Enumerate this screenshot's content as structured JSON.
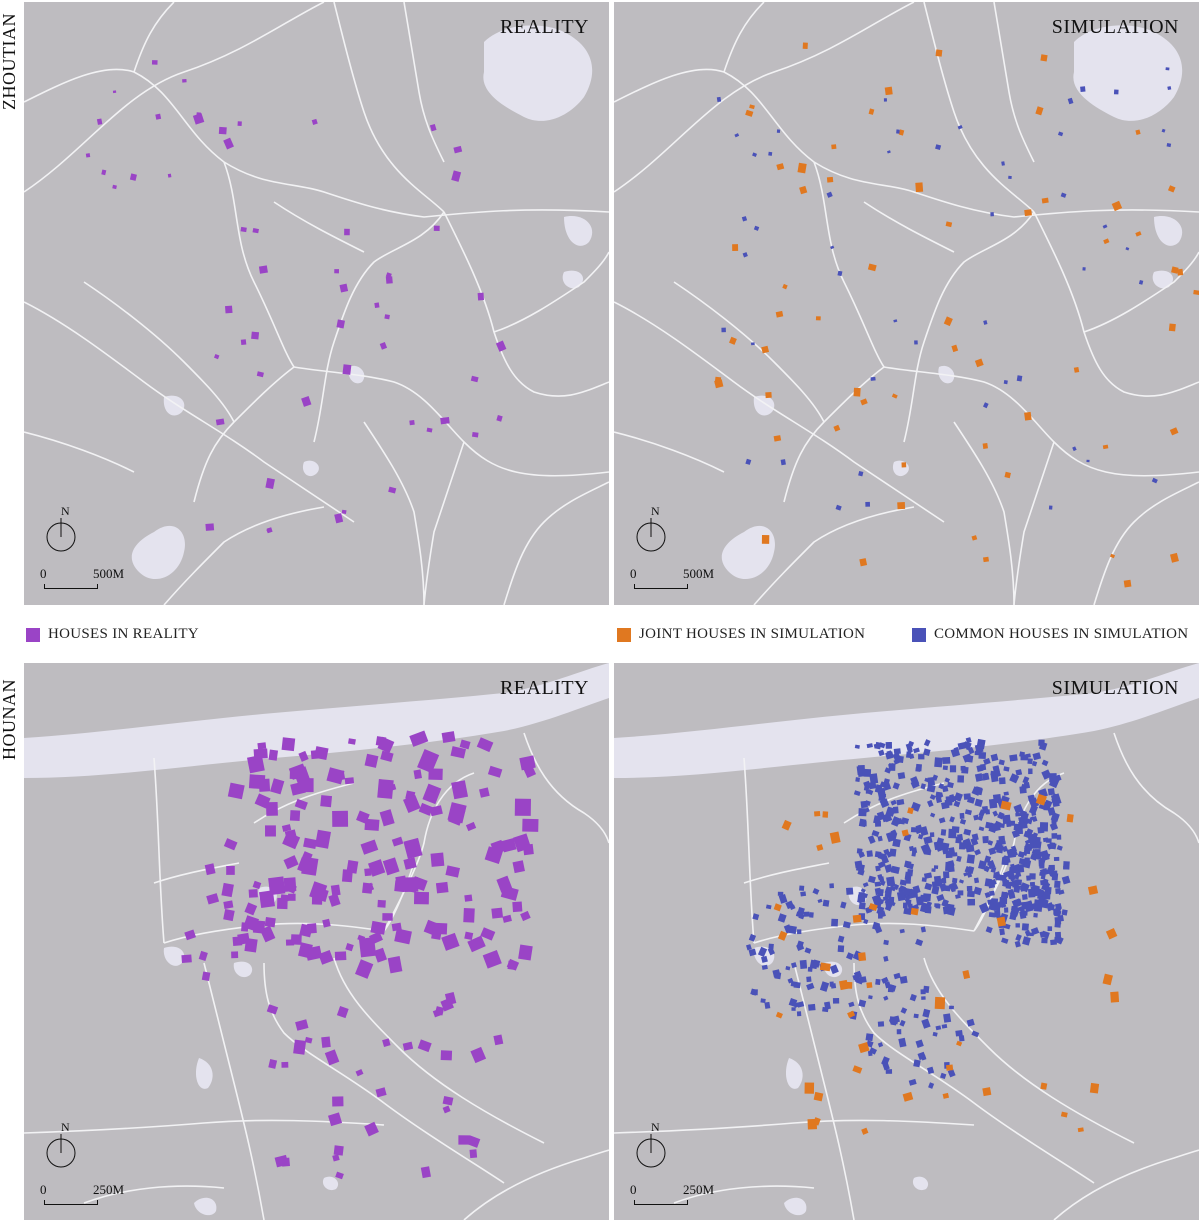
{
  "row_labels": {
    "top": "ZHOUTIAN",
    "bottom": "HOUNAN"
  },
  "panels": {
    "zhoutian_reality": {
      "title": "REALITY",
      "scale_zero": "0",
      "scale_label": "500M",
      "north": "N"
    },
    "zhoutian_simulation": {
      "title": "SIMULATION",
      "scale_zero": "0",
      "scale_label": "500M",
      "north": "N"
    },
    "hounan_reality": {
      "title": "REALITY",
      "scale_zero": "0",
      "scale_label": "250M",
      "north": "N"
    },
    "hounan_simulation": {
      "title": "SIMULATION",
      "scale_zero": "0",
      "scale_label": "250M",
      "north": "N"
    }
  },
  "legend": {
    "reality": "HOUSES IN REALITY",
    "joint": "JOINT HOUSES IN SIMULATION",
    "common": "COMMON HOUSES IN SIMULATION"
  },
  "colors": {
    "background": "#bebcc0",
    "water": "#e4e3ee",
    "road": "#f2f2f4",
    "reality_house": "#9a44c6",
    "joint_house": "#e07820",
    "common_house": "#4a52b8"
  }
}
